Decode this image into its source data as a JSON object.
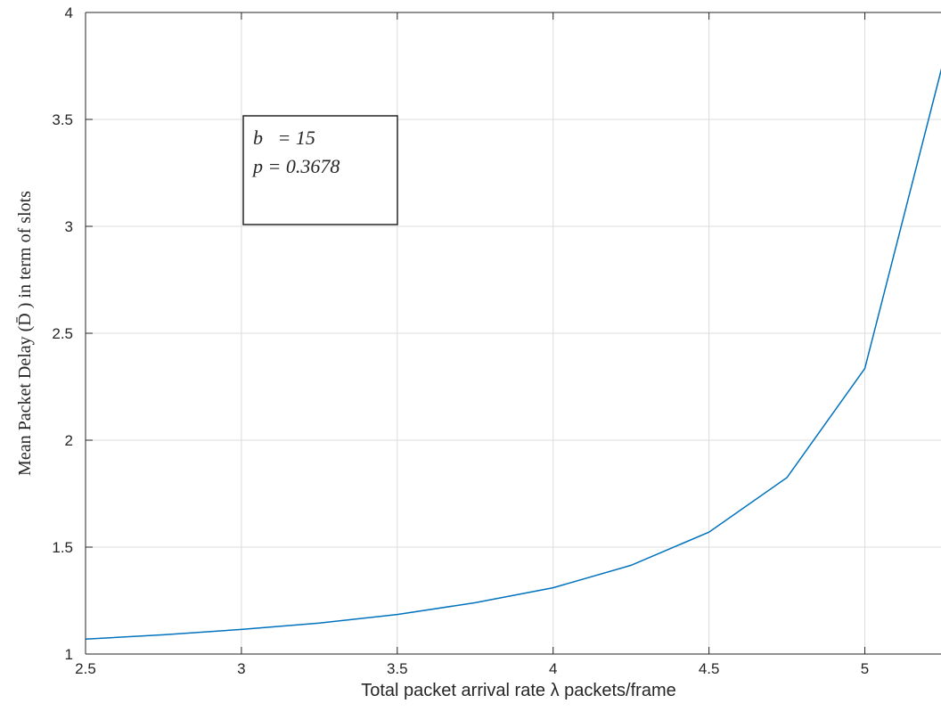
{
  "chart_data": {
    "type": "line",
    "xlabel": "Total packet arrival rate λ packets/frame",
    "ylabel": "Mean Packet Delay (D̄ ) in term of slots",
    "xlim": [
      2.5,
      5.25
    ],
    "ylim": [
      1,
      4
    ],
    "x_ticks": [
      "2.5",
      "3",
      "3.5",
      "4",
      "4.5",
      "5"
    ],
    "y_ticks": [
      "1",
      "1.5",
      "2",
      "2.5",
      "3",
      "3.5",
      "4"
    ],
    "grid": true,
    "annotation": {
      "line1": "b   = 15",
      "line2": "p = 0.3678"
    },
    "series": [
      {
        "color": "#0072bd",
        "x": [
          2.5,
          2.75,
          3.0,
          3.25,
          3.5,
          3.75,
          4.0,
          4.25,
          4.5,
          4.75,
          5.0,
          5.25
        ],
        "y": [
          1.07,
          1.09,
          1.115,
          1.145,
          1.185,
          1.24,
          1.31,
          1.415,
          1.57,
          1.825,
          2.335,
          3.76
        ]
      }
    ]
  }
}
